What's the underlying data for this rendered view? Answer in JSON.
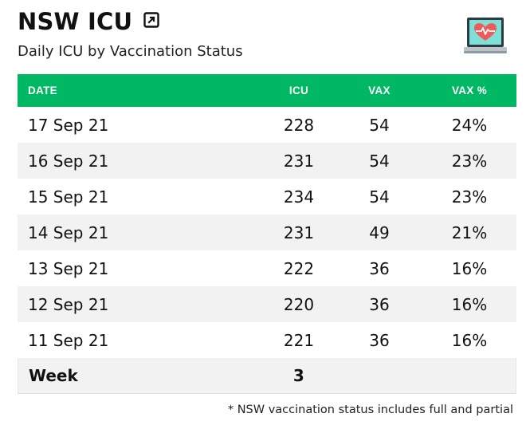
{
  "header": {
    "title": "NSW ICU",
    "subtitle": "Daily ICU by Vaccination Status"
  },
  "icons": {
    "expand": "external-link-icon",
    "logo": "laptop-heart-icon"
  },
  "table": {
    "columns": [
      "DATE",
      "ICU",
      "VAX",
      "VAX %"
    ],
    "rows": [
      [
        "17 Sep 21",
        "228",
        "54",
        "24%"
      ],
      [
        "16 Sep 21",
        "231",
        "54",
        "23%"
      ],
      [
        "15 Sep 21",
        "234",
        "54",
        "23%"
      ],
      [
        "14 Sep 21",
        "231",
        "49",
        "21%"
      ],
      [
        "13 Sep 21",
        "222",
        "36",
        "16%"
      ],
      [
        "12 Sep 21",
        "220",
        "36",
        "16%"
      ],
      [
        "11 Sep 21",
        "221",
        "36",
        "16%"
      ]
    ],
    "summary": {
      "label": "Week",
      "icu": "3"
    }
  },
  "footnote": "* NSW vaccination status includes full and partial",
  "colors": {
    "header_bg": "#00b863",
    "row_alt": "#f2f2f2"
  }
}
